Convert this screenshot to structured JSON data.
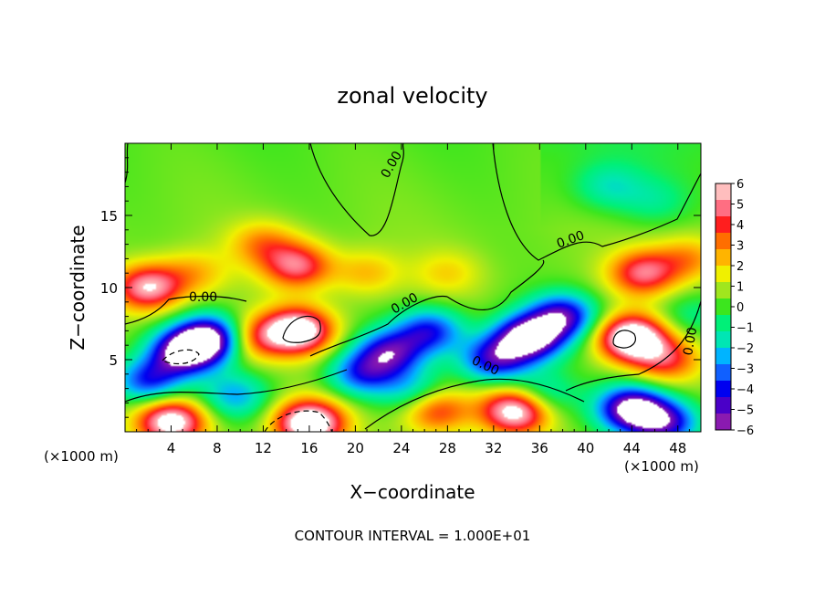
{
  "chart_data": {
    "type": "heatmap",
    "title": "zonal velocity",
    "xlabel": "X−coordinate",
    "ylabel": "Z−coordinate",
    "x_unit_left": "(×1000 m)",
    "x_unit_right": "(×1000 m)",
    "footer": "CONTOUR INTERVAL = 1.000E+01",
    "xlim": [
      0,
      50
    ],
    "ylim": [
      0,
      20
    ],
    "x_ticks": [
      4,
      8,
      12,
      16,
      20,
      24,
      28,
      32,
      36,
      40,
      44,
      48
    ],
    "x_tick_labels": [
      "4",
      "8",
      "12",
      "16",
      "20",
      "24",
      "28",
      "32",
      "36",
      "40",
      "44",
      "48"
    ],
    "y_ticks": [
      5,
      10,
      15
    ],
    "y_tick_labels": [
      "5",
      "10",
      "15"
    ],
    "colorbar": {
      "range": [
        -6,
        6
      ],
      "tick_labels": [
        "6",
        "5",
        "4",
        "3",
        "2",
        "1",
        "0",
        "−1",
        "−2",
        "−3",
        "−4",
        "−5",
        "−6"
      ],
      "colors": [
        "#8a1ab0",
        "#4a00c8",
        "#0000f0",
        "#1060ff",
        "#00b4ff",
        "#00e6b4",
        "#00f078",
        "#3ce61e",
        "#a0e61e",
        "#f0f000",
        "#ffb400",
        "#ff6e00",
        "#ff1e1e",
        "#ff6e82",
        "#ffbebe"
      ]
    },
    "contour_labels": [
      "0.00",
      "0.00",
      "0.00",
      "0.00",
      "0.00",
      "0.00"
    ],
    "features": [
      {
        "x": 2,
        "z": 10,
        "u": 5.5
      },
      {
        "x": 6,
        "z": 11,
        "u": 2
      },
      {
        "x": 12,
        "z": 13,
        "u": 2.5
      },
      {
        "x": 15,
        "z": 11.5,
        "u": 4.5
      },
      {
        "x": 21,
        "z": 11,
        "u": 2
      },
      {
        "x": 28,
        "z": 11,
        "u": 1.5
      },
      {
        "x": 45,
        "z": 11,
        "u": 4.5
      },
      {
        "x": 49,
        "z": 12,
        "u": 2.5
      },
      {
        "x": 42,
        "z": 17,
        "u": -1.8
      },
      {
        "x": 46,
        "z": 16,
        "u": -1.2
      },
      {
        "x": 5,
        "z": 5.5,
        "u": -6.5
      },
      {
        "x": 7.5,
        "z": 6.5,
        "u": -7
      },
      {
        "x": 2,
        "z": 3.5,
        "u": -4.5
      },
      {
        "x": 15,
        "z": 7,
        "u": 7
      },
      {
        "x": 9.5,
        "z": 2.5,
        "u": -3
      },
      {
        "x": 23,
        "z": 5.5,
        "u": -5
      },
      {
        "x": 26.5,
        "z": 7,
        "u": -4.5
      },
      {
        "x": 20.5,
        "z": 4,
        "u": -4
      },
      {
        "x": 35,
        "z": 6.5,
        "u": -7.5
      },
      {
        "x": 32,
        "z": 5,
        "u": -5
      },
      {
        "x": 38,
        "z": 8,
        "u": -5.5
      },
      {
        "x": 44,
        "z": 6.5,
        "u": 7.5
      },
      {
        "x": 47,
        "z": 5,
        "u": 3.5
      },
      {
        "x": 49,
        "z": 8,
        "u": -1.5
      },
      {
        "x": 4,
        "z": 0.7,
        "u": 6.5
      },
      {
        "x": 16,
        "z": 0.6,
        "u": 7.5
      },
      {
        "x": 27,
        "z": 1.5,
        "u": 4
      },
      {
        "x": 34,
        "z": 1.5,
        "u": 7
      },
      {
        "x": 44,
        "z": 1.6,
        "u": -7
      },
      {
        "x": 47,
        "z": 0.6,
        "u": -5
      },
      {
        "x": 36,
        "z": 2.5,
        "u": -3
      },
      {
        "x": 11,
        "z": 6.5,
        "u": 3.5
      },
      {
        "x": 25,
        "z": 2.8,
        "u": -2.5
      }
    ]
  }
}
